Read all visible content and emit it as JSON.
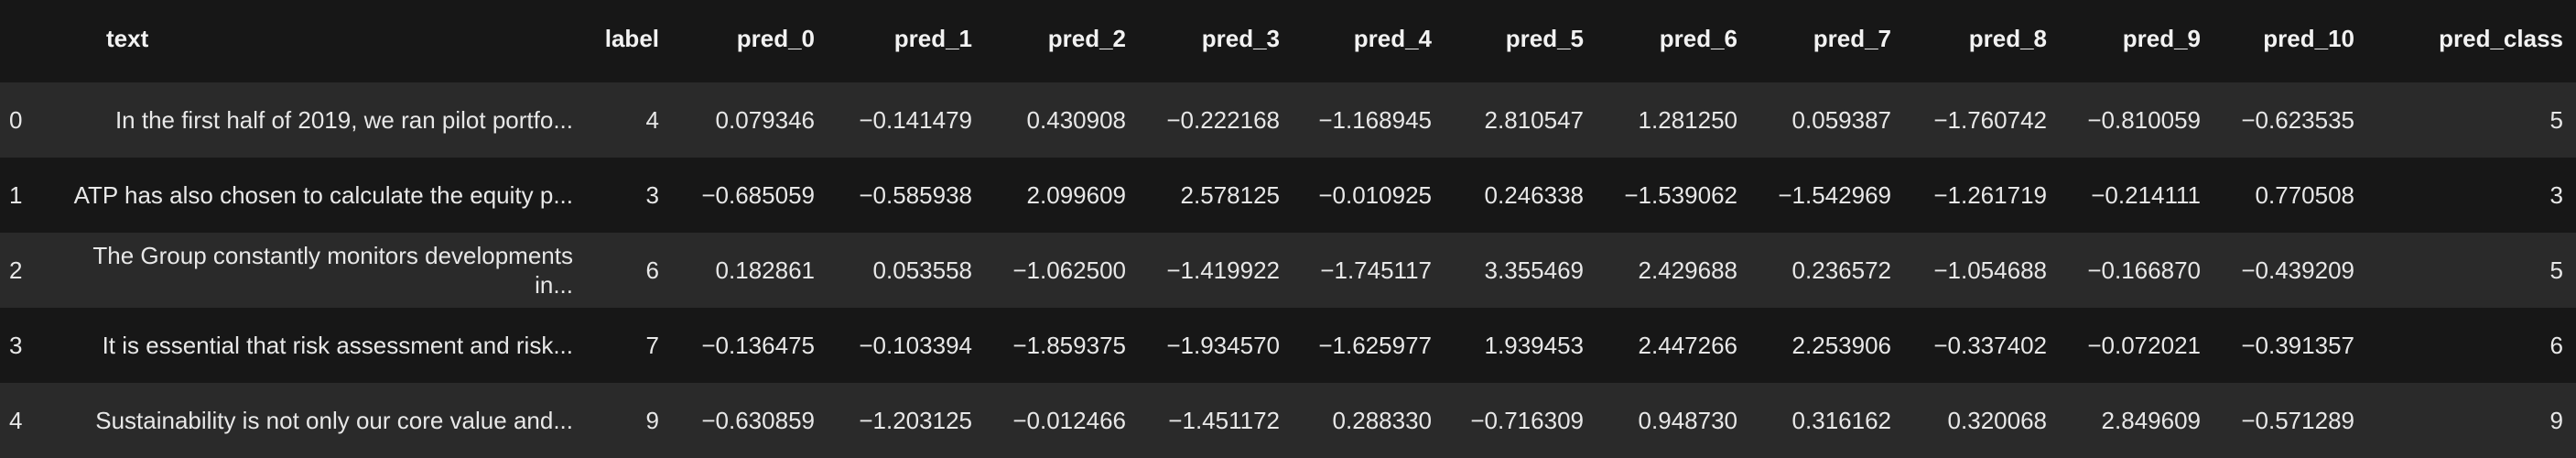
{
  "columns": [
    "text",
    "label",
    "pred_0",
    "pred_1",
    "pred_2",
    "pred_3",
    "pred_4",
    "pred_5",
    "pred_6",
    "pred_7",
    "pred_8",
    "pred_9",
    "pred_10",
    "pred_class"
  ],
  "rows": [
    {
      "index": "0",
      "text": "In the first half of 2019, we ran pilot portfo...",
      "label": "4",
      "preds": [
        "0.079346",
        "−0.141479",
        "0.430908",
        "−0.222168",
        "−1.168945",
        "2.810547",
        "1.281250",
        "0.059387",
        "−1.760742",
        "−0.810059",
        "−0.623535"
      ],
      "pred_class": "5"
    },
    {
      "index": "1",
      "text": "ATP has also chosen to calculate the equity p...",
      "label": "3",
      "preds": [
        "−0.685059",
        "−0.585938",
        "2.099609",
        "2.578125",
        "−0.010925",
        "0.246338",
        "−1.539062",
        "−1.542969",
        "−1.261719",
        "−0.214111",
        "0.770508"
      ],
      "pred_class": "3"
    },
    {
      "index": "2",
      "text": "The Group constantly monitors developments in...",
      "label": "6",
      "preds": [
        "0.182861",
        "0.053558",
        "−1.062500",
        "−1.419922",
        "−1.745117",
        "3.355469",
        "2.429688",
        "0.236572",
        "−1.054688",
        "−0.166870",
        "−0.439209"
      ],
      "pred_class": "5"
    },
    {
      "index": "3",
      "text": "It is essential that risk assessment and risk...",
      "label": "7",
      "preds": [
        "−0.136475",
        "−0.103394",
        "−1.859375",
        "−1.934570",
        "−1.625977",
        "1.939453",
        "2.447266",
        "2.253906",
        "−0.337402",
        "−0.072021",
        "−0.391357"
      ],
      "pred_class": "6"
    },
    {
      "index": "4",
      "text": "Sustainability is not only our core value and...",
      "label": "9",
      "preds": [
        "−0.630859",
        "−1.203125",
        "−0.012466",
        "−1.451172",
        "0.288330",
        "−0.716309",
        "0.948730",
        "0.316162",
        "0.320068",
        "2.849609",
        "−0.571289"
      ],
      "pred_class": "9"
    }
  ]
}
